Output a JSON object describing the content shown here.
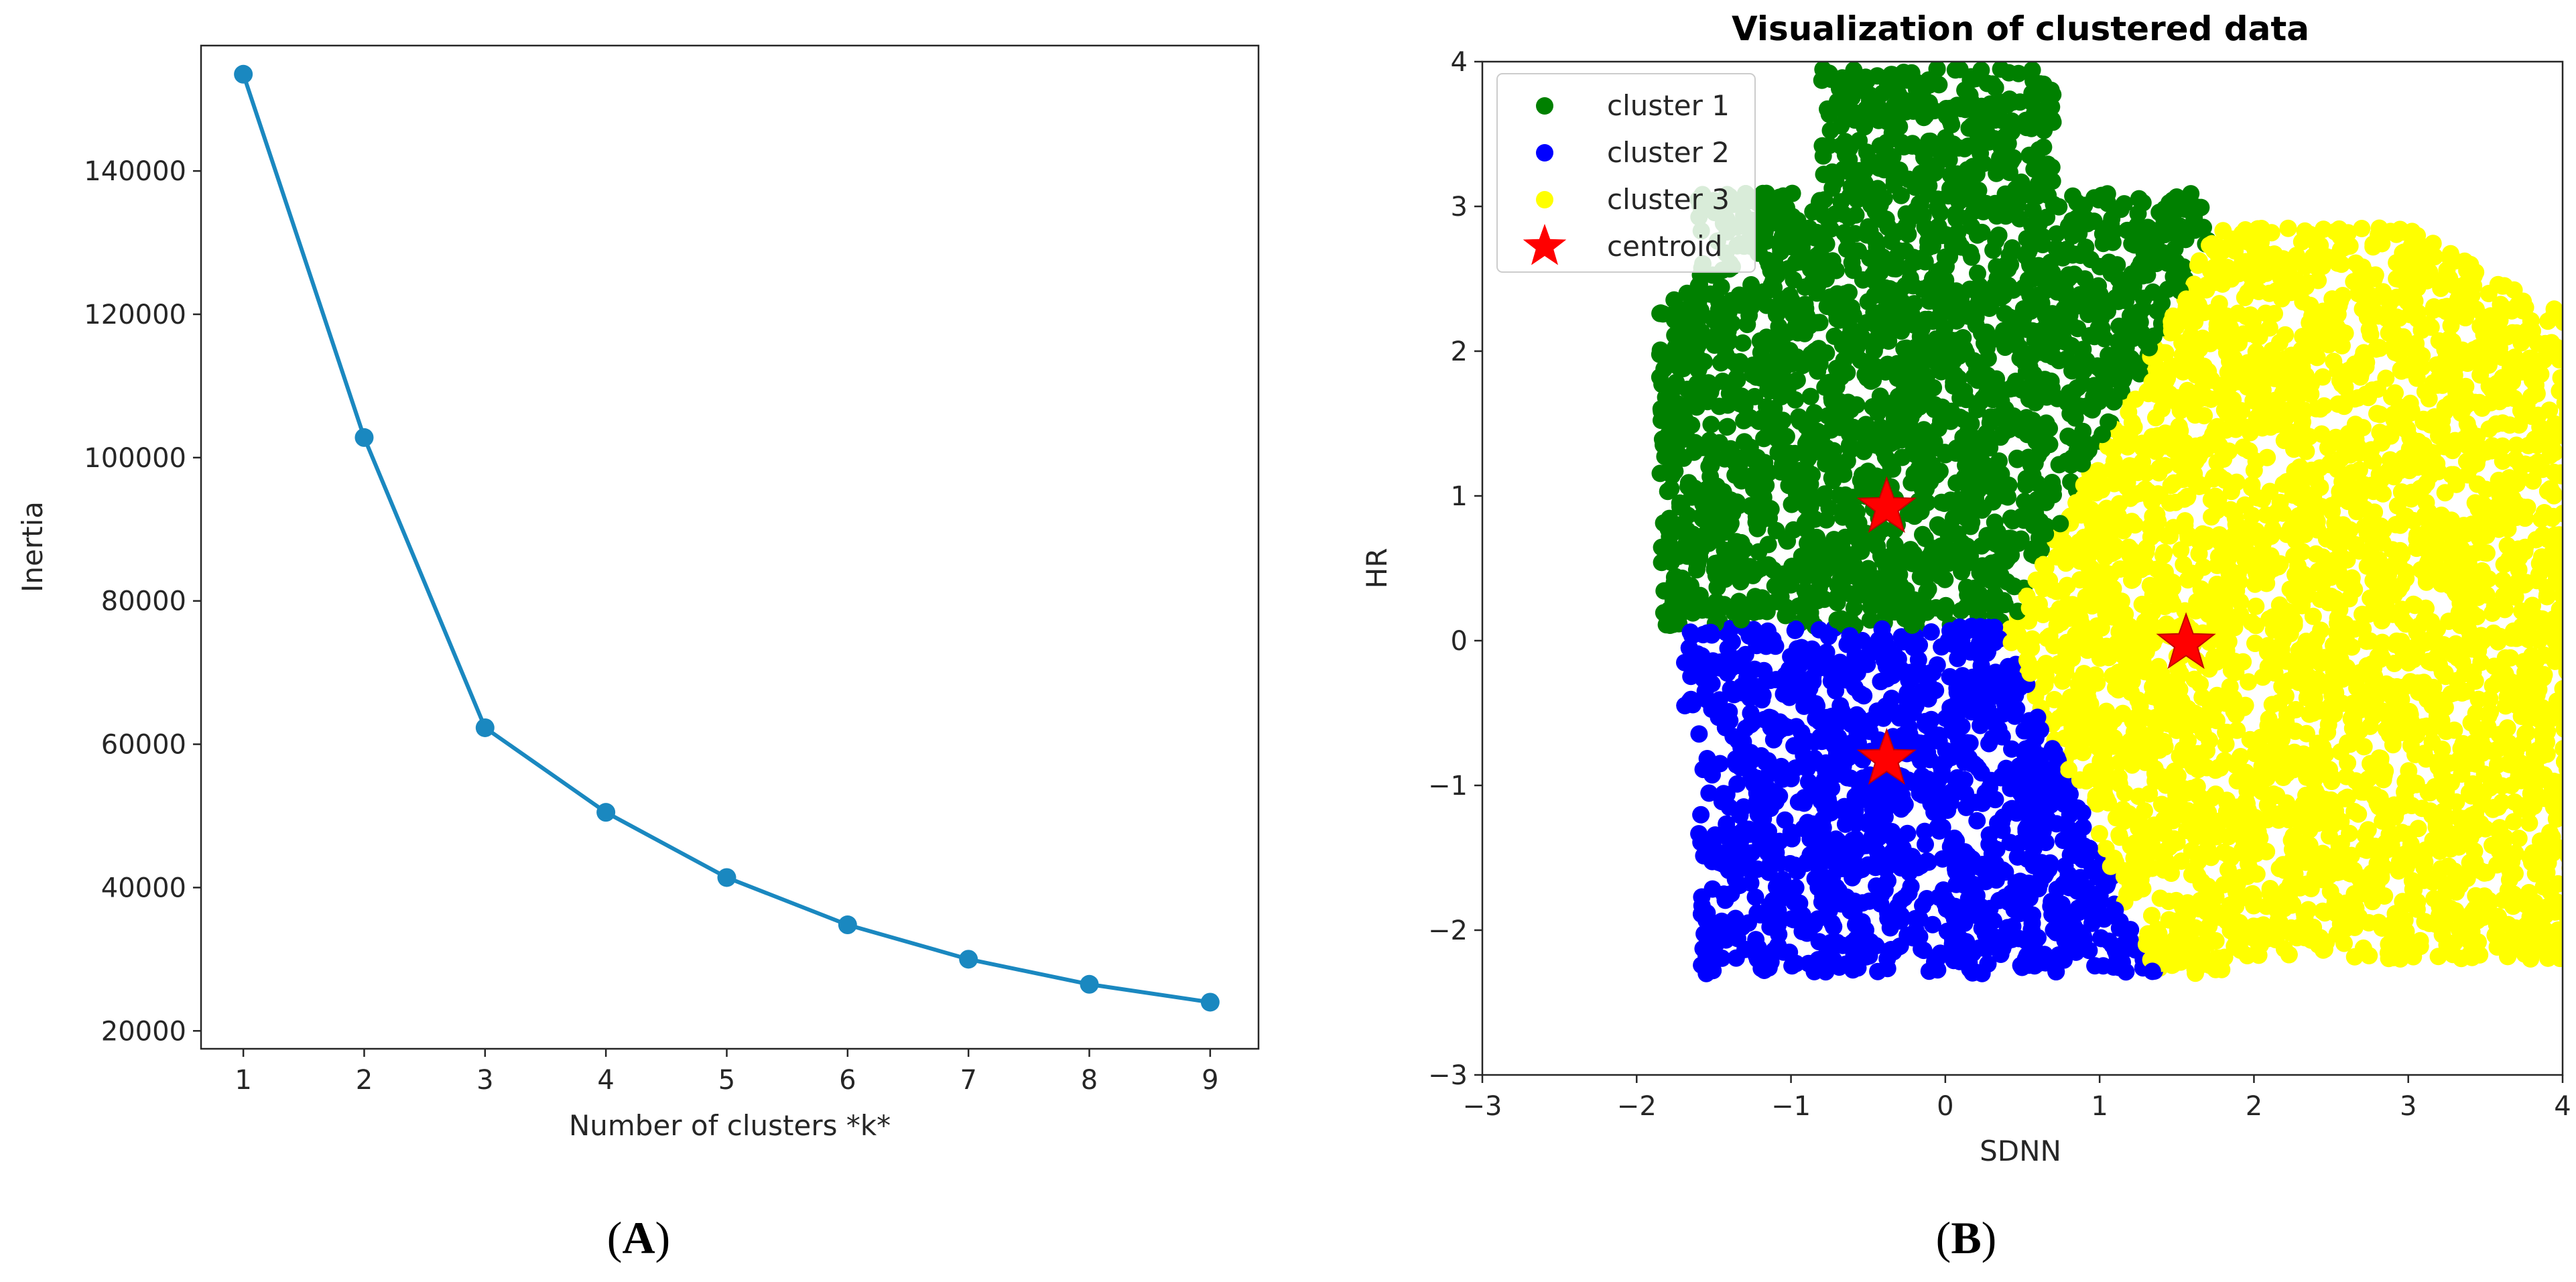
{
  "chart_data": [
    {
      "type": "line",
      "panel_label": "A",
      "title": "",
      "xlabel": "Number of clusters *k*",
      "ylabel": "Inertia",
      "x": [
        1,
        2,
        3,
        4,
        5,
        6,
        7,
        8,
        9
      ],
      "values": [
        153500,
        102800,
        62300,
        50500,
        41400,
        34800,
        30000,
        26500,
        24000
      ],
      "xticks": [
        "1",
        "2",
        "3",
        "4",
        "5",
        "6",
        "7",
        "8",
        "9"
      ],
      "yticks": [
        "20000",
        "40000",
        "60000",
        "80000",
        "100000",
        "120000",
        "140000"
      ],
      "xlim": [
        0.65,
        9.4
      ],
      "ylim": [
        17500,
        157500
      ],
      "color": "#1a88c0",
      "grid": false
    },
    {
      "type": "scatter",
      "panel_label": "B",
      "title": "Visualization of clustered data",
      "xlabel": "SDNN",
      "ylabel": "HR",
      "xlim": [
        -3,
        4
      ],
      "ylim": [
        -3,
        4
      ],
      "xticks": [
        "−3",
        "−2",
        "−1",
        "0",
        "1",
        "2",
        "3",
        "4"
      ],
      "yticks": [
        "−3",
        "−2",
        "−1",
        "0",
        "1",
        "2",
        "3",
        "4"
      ],
      "legend_position": "top-left",
      "series": [
        {
          "name": "cluster 1",
          "color": "#008000",
          "region": {
            "x_range": [
              -1.8,
              1.7
            ],
            "y_range": [
              0.1,
              3.9
            ]
          }
        },
        {
          "name": "cluster 2",
          "color": "#0000ff",
          "region": {
            "x_range": [
              -1.7,
              1.3
            ],
            "y_range": [
              -2.25,
              0.1
            ]
          }
        },
        {
          "name": "cluster 3",
          "color": "#ffff00",
          "region": {
            "x_range": [
              0.3,
              4.0
            ],
            "y_range": [
              -2.3,
              2.8
            ]
          }
        }
      ],
      "centroids": {
        "name": "centroid",
        "color": "#ff0000",
        "points": [
          {
            "x": -0.38,
            "y": 0.92
          },
          {
            "x": -0.38,
            "y": -0.82
          },
          {
            "x": 1.56,
            "y": -0.02
          }
        ]
      },
      "grid": false
    }
  ]
}
